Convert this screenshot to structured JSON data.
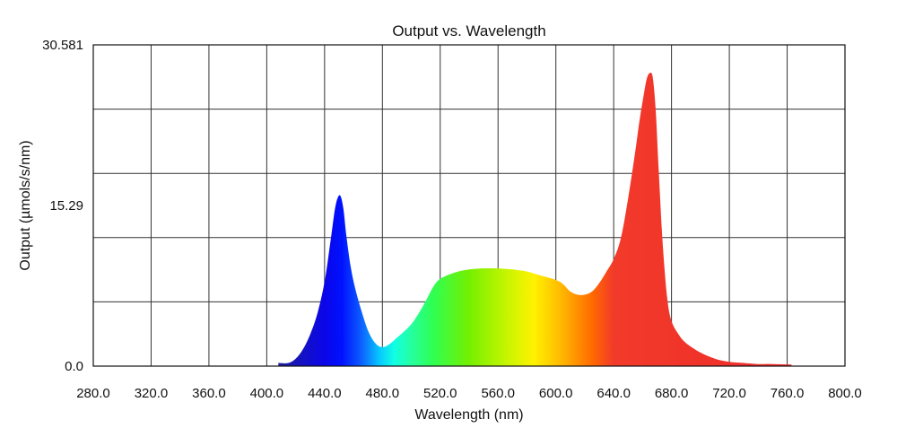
{
  "chart_data": {
    "type": "area",
    "title": "Output vs. Wavelength",
    "xlabel": "Wavelength (nm)",
    "ylabel": "Output (µmols/s/nm)",
    "xlim": [
      280,
      800
    ],
    "ylim": [
      0,
      30.581
    ],
    "x_ticks": [
      "280.0",
      "320.0",
      "360.0",
      "400.0",
      "440.0",
      "480.0",
      "520.0",
      "560.0",
      "600.0",
      "640.0",
      "680.0",
      "720.0",
      "760.0",
      "800.0"
    ],
    "y_ticks": [
      {
        "value": 0,
        "label": "0.0"
      },
      {
        "value": 15.29,
        "label": "15.29"
      },
      {
        "value": 30.581,
        "label": "30.581"
      }
    ],
    "grid": true,
    "series": [
      {
        "x": [
          408,
          415,
          420,
          425,
          430,
          435,
          440,
          444,
          447,
          449,
          451,
          453,
          455,
          458,
          461,
          465,
          470,
          475,
          480,
          485,
          490,
          495,
          500,
          505,
          510,
          515,
          520,
          530,
          540,
          550,
          560,
          570,
          580,
          590,
          600,
          605,
          610,
          615,
          620,
          625,
          630,
          635,
          640,
          645,
          650,
          655,
          658,
          661,
          663,
          665,
          667,
          669,
          671,
          674,
          677,
          680,
          685,
          690,
          700,
          710,
          720,
          730,
          740,
          750,
          763
        ],
        "y": [
          0.3,
          0.3,
          0.7,
          1.6,
          3.0,
          5.0,
          8.0,
          11.8,
          14.8,
          16.0,
          16.2,
          15.0,
          12.5,
          9.5,
          7.5,
          5.5,
          3.4,
          2.2,
          1.8,
          2.1,
          2.7,
          3.3,
          4.0,
          5.0,
          6.2,
          7.5,
          8.3,
          8.9,
          9.2,
          9.3,
          9.3,
          9.2,
          9.0,
          8.6,
          8.2,
          7.8,
          7.1,
          6.8,
          6.8,
          7.1,
          7.9,
          9.0,
          10.2,
          12.2,
          16.0,
          20.5,
          23.5,
          26.0,
          27.4,
          27.9,
          27.5,
          24.5,
          19.0,
          11.5,
          6.5,
          4.3,
          3.0,
          2.2,
          1.3,
          0.7,
          0.4,
          0.3,
          0.2,
          0.2,
          0.15
        ]
      }
    ],
    "colors": {
      "gradient": [
        {
          "x": 408,
          "color": "#1e1e9a"
        },
        {
          "x": 440,
          "color": "#0b06e8"
        },
        {
          "x": 452,
          "color": "#0011ff"
        },
        {
          "x": 465,
          "color": "#0c5cff"
        },
        {
          "x": 478,
          "color": "#07c8ff"
        },
        {
          "x": 488,
          "color": "#10ffe4"
        },
        {
          "x": 500,
          "color": "#25ffa0"
        },
        {
          "x": 515,
          "color": "#2fff52"
        },
        {
          "x": 540,
          "color": "#74ef00"
        },
        {
          "x": 565,
          "color": "#c4f500"
        },
        {
          "x": 585,
          "color": "#fff200"
        },
        {
          "x": 605,
          "color": "#ffb400"
        },
        {
          "x": 625,
          "color": "#ff6a00"
        },
        {
          "x": 640,
          "color": "#f23a2a"
        },
        {
          "x": 763,
          "color": "#ee2b2b"
        }
      ]
    }
  }
}
